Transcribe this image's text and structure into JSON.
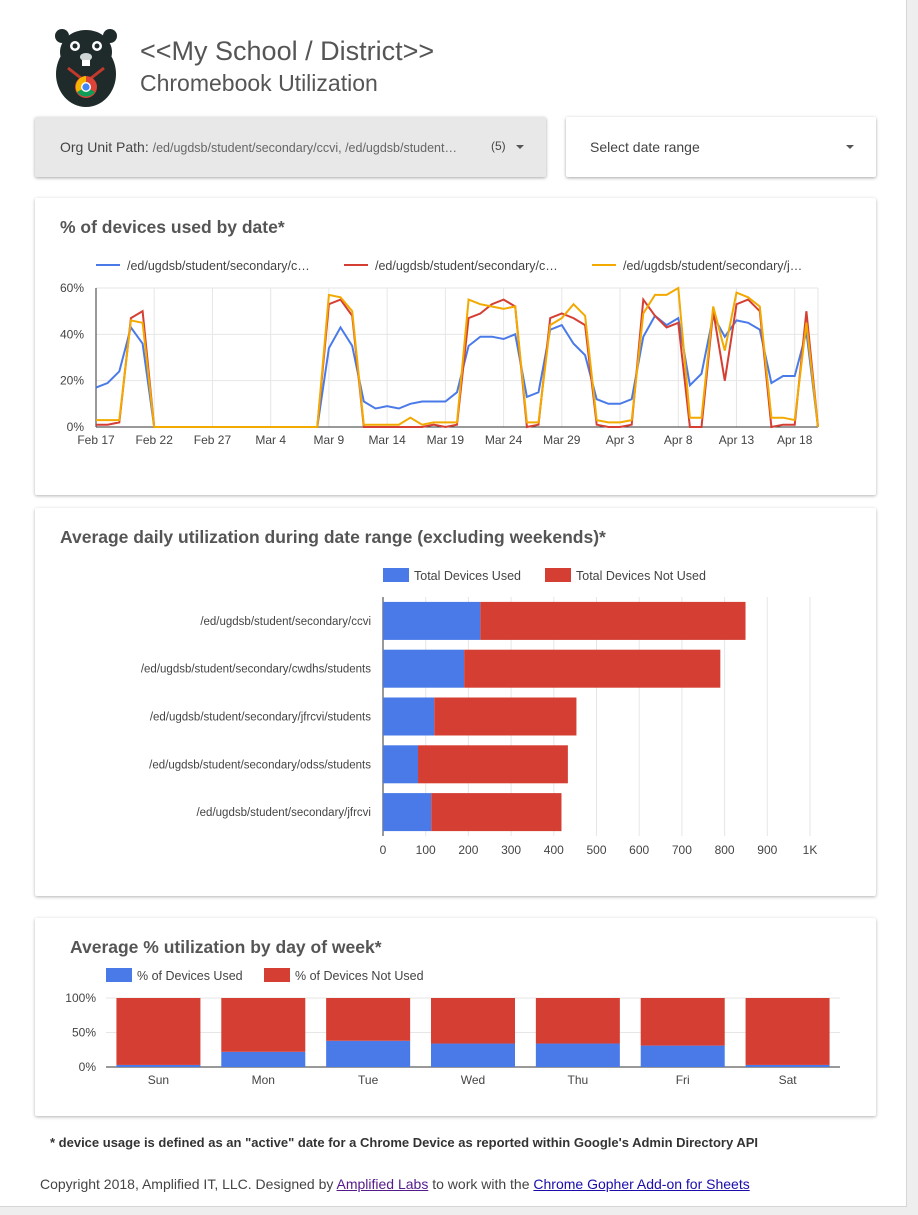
{
  "header": {
    "title_line1": "<<My School / District>>",
    "title_line2": "Chromebook Utilization",
    "logo_icon": "gopher-chrome-logo-icon"
  },
  "controls": {
    "org_unit_label": "Org Unit Path:",
    "org_unit_value": "/ed/ugdsb/student/secondary/ccvi, /ed/ugdsb/student…",
    "org_unit_count": "(5)",
    "date_range_label": "Select date range"
  },
  "line_chart": {
    "title": "% of devices used by date*",
    "legend": [
      {
        "name": "/ed/ugdsb/student/secondary/c…",
        "color": "#4a7ae8"
      },
      {
        "name": "/ed/ugdsb/student/secondary/c…",
        "color": "#d53f33"
      },
      {
        "name": "/ed/ugdsb/student/secondary/j…",
        "color": "#f2a900"
      }
    ],
    "y_ticks": [
      "0%",
      "20%",
      "40%",
      "60%"
    ],
    "x_ticks": [
      "Feb 17",
      "Feb 22",
      "Feb 27",
      "Mar 4",
      "Mar 9",
      "Mar 14",
      "Mar 19",
      "Mar 24",
      "Mar 29",
      "Apr 3",
      "Apr 8",
      "Apr 13",
      "Apr 18"
    ]
  },
  "bar_chart": {
    "title": "Average daily utilization during date range (excluding weekends)*",
    "legend": [
      "Total Devices Used",
      "Total Devices Not Used"
    ],
    "x_ticks": [
      "0",
      "100",
      "200",
      "300",
      "400",
      "500",
      "600",
      "700",
      "800",
      "900",
      "1K"
    ]
  },
  "week_chart": {
    "title": "Average % utilization by day of week*",
    "legend": [
      "% of Devices Used",
      "% of Devices Not Used"
    ],
    "y_ticks": [
      "0%",
      "50%",
      "100%"
    ]
  },
  "footnote": "* device usage is defined as an \"active\" date for a Chrome Device as reported within Google's Admin Directory API",
  "footer": {
    "prefix": "Copyright 2018, Amplified IT, LLC.  Designed by ",
    "link1": "Amplified Labs",
    "middle": " to work with the ",
    "link2": "Chrome Gopher Add-on for Sheets"
  },
  "colors": {
    "used": "#4a7ae8",
    "not_used": "#d53f33",
    "third": "#f2a900"
  },
  "chart_data": [
    {
      "type": "line",
      "title": "% of devices used by date*",
      "x_start": "2018-02-17",
      "x_end": "2018-04-18",
      "ylim": [
        0,
        60
      ],
      "y_unit": "%",
      "series": [
        {
          "name": "/ed/ugdsb/student/secondary/c…",
          "color": "#4a7ae8",
          "values": [
            17,
            19,
            24,
            43,
            36,
            0,
            0,
            0,
            0,
            0,
            0,
            0,
            0,
            0,
            0,
            0,
            0,
            0,
            0,
            0,
            34,
            43,
            35,
            11,
            8,
            9,
            8,
            10,
            11,
            11,
            11,
            15,
            35,
            39,
            39,
            38,
            40,
            13,
            15,
            42,
            44,
            36,
            31,
            12,
            10,
            10,
            12,
            39,
            48,
            44,
            47,
            18,
            23,
            48,
            39,
            46,
            45,
            42,
            19,
            22,
            22,
            41,
            0
          ]
        },
        {
          "name": "/ed/ugdsb/student/secondary/c…",
          "color": "#d53f33",
          "values": [
            1,
            1,
            2,
            47,
            50,
            0,
            0,
            0,
            0,
            0,
            0,
            0,
            0,
            0,
            0,
            0,
            0,
            0,
            0,
            0,
            53,
            55,
            48,
            0,
            0,
            0,
            0,
            0,
            0,
            1,
            0,
            1,
            47,
            49,
            53,
            55,
            52,
            0,
            1,
            47,
            49,
            47,
            44,
            1,
            0,
            0,
            1,
            55,
            48,
            43,
            45,
            0,
            0,
            50,
            20,
            53,
            55,
            50,
            0,
            1,
            1,
            50,
            0
          ]
        },
        {
          "name": "/ed/ugdsb/student/secondary/j…",
          "color": "#f2a900",
          "values": [
            3,
            3,
            3,
            46,
            45,
            0,
            0,
            0,
            0,
            0,
            0,
            0,
            0,
            0,
            0,
            0,
            0,
            0,
            0,
            0,
            57,
            56,
            50,
            1,
            1,
            1,
            1,
            4,
            1,
            2,
            2,
            2,
            55,
            53,
            52,
            51,
            52,
            2,
            2,
            44,
            47,
            53,
            48,
            3,
            2,
            2,
            3,
            49,
            57,
            57,
            60,
            4,
            4,
            52,
            33,
            58,
            56,
            52,
            4,
            4,
            3,
            45,
            0
          ]
        }
      ]
    },
    {
      "type": "bar",
      "orientation": "horizontal",
      "stacked": true,
      "title": "Average daily utilization during date range (excluding weekends)*",
      "categories": [
        "/ed/ugdsb/student/secondary/ccvi",
        "/ed/ugdsb/student/secondary/cwdhs/students",
        "/ed/ugdsb/student/secondary/jfrcvi/students",
        "/ed/ugdsb/student/secondary/odss/students",
        "/ed/ugdsb/student/secondary/jfrcvi"
      ],
      "series": [
        {
          "name": "Total Devices Used",
          "values": [
            228,
            190,
            120,
            82,
            113
          ]
        },
        {
          "name": "Total Devices Not Used",
          "values": [
            621,
            600,
            333,
            351,
            305
          ]
        }
      ],
      "xlim": [
        0,
        1000
      ]
    },
    {
      "type": "bar",
      "stacked": true,
      "title": "Average % utilization by day of week*",
      "categories": [
        "Sun",
        "Mon",
        "Tue",
        "Wed",
        "Thu",
        "Fri",
        "Sat"
      ],
      "series": [
        {
          "name": "% of Devices Used",
          "values": [
            3,
            22,
            38,
            34,
            34,
            31,
            3
          ]
        },
        {
          "name": "% of Devices Not Used",
          "values": [
            97,
            78,
            62,
            66,
            66,
            69,
            97
          ]
        }
      ],
      "ylim": [
        0,
        100
      ]
    }
  ]
}
